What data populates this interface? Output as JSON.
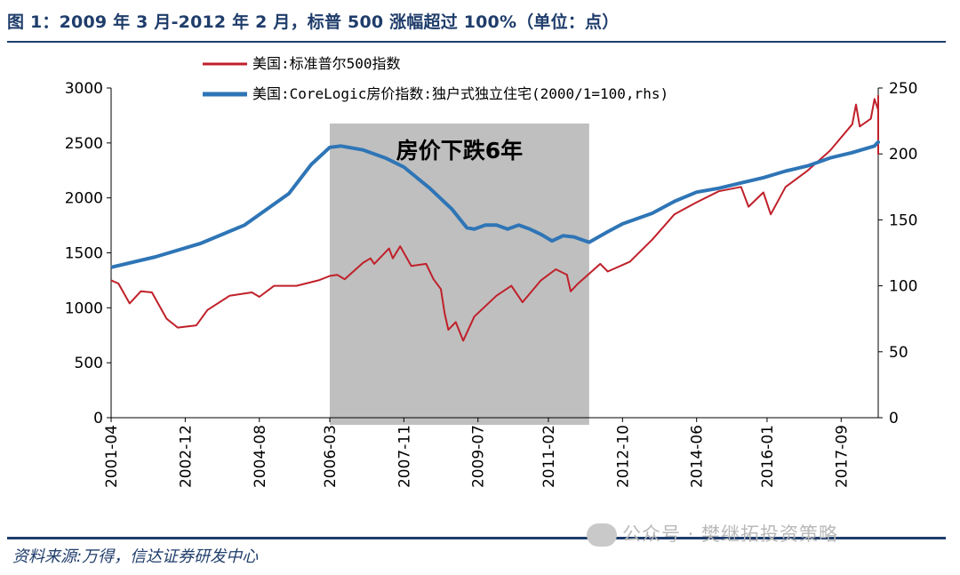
{
  "header": {
    "title": "图 1：2009 年 3 月-2012 年 2 月，标普 500 涨幅超过 100%（单位：点）"
  },
  "footer": {
    "source": "资料来源:万得，信达证券研发中心",
    "watermark": "公众号 · 樊继拓投资策略"
  },
  "colors": {
    "sp500": "#c0202a",
    "corelogic": "#2e75b6",
    "shade": "#bfbfbf",
    "frame": "#1f3d6b"
  },
  "chart_data": {
    "type": "line",
    "annotation": "房价下跌6年",
    "shaded_period": [
      "2006-03",
      "2012-01"
    ],
    "x_ticks": [
      "2001-04",
      "2002-12",
      "2004-08",
      "2006-03",
      "2007-11",
      "2009-07",
      "2011-02",
      "2012-10",
      "2014-06",
      "2016-01",
      "2017-09"
    ],
    "x_range": [
      "2001-04",
      "2018-07"
    ],
    "y_left": {
      "ticks": [
        "0",
        "500",
        "1000",
        "1500",
        "2000",
        "2500",
        "3000"
      ],
      "range": [
        0,
        3000
      ]
    },
    "y_right": {
      "ticks": [
        "0",
        "50",
        "100",
        "150",
        "200",
        "250"
      ],
      "range": [
        0,
        250
      ]
    },
    "legend_position": "top-center",
    "series": [
      {
        "name": "美国:标准普尔500指数",
        "axis": "left",
        "points": [
          [
            "2001-04",
            1250
          ],
          [
            "2001-06",
            1220
          ],
          [
            "2001-09",
            1040
          ],
          [
            "2001-12",
            1150
          ],
          [
            "2002-03",
            1140
          ],
          [
            "2002-07",
            900
          ],
          [
            "2002-10",
            820
          ],
          [
            "2003-03",
            840
          ],
          [
            "2003-06",
            980
          ],
          [
            "2003-12",
            1110
          ],
          [
            "2004-06",
            1140
          ],
          [
            "2004-08",
            1100
          ],
          [
            "2004-12",
            1200
          ],
          [
            "2005-06",
            1200
          ],
          [
            "2005-12",
            1250
          ],
          [
            "2006-03",
            1290
          ],
          [
            "2006-05",
            1300
          ],
          [
            "2006-07",
            1260
          ],
          [
            "2006-12",
            1410
          ],
          [
            "2007-02",
            1450
          ],
          [
            "2007-03",
            1400
          ],
          [
            "2007-07",
            1540
          ],
          [
            "2007-08",
            1450
          ],
          [
            "2007-10",
            1560
          ],
          [
            "2008-01",
            1380
          ],
          [
            "2008-05",
            1400
          ],
          [
            "2008-07",
            1260
          ],
          [
            "2008-09",
            1170
          ],
          [
            "2008-10",
            950
          ],
          [
            "2008-11",
            800
          ],
          [
            "2009-01",
            870
          ],
          [
            "2009-03",
            700
          ],
          [
            "2009-06",
            920
          ],
          [
            "2009-12",
            1110
          ],
          [
            "2010-04",
            1200
          ],
          [
            "2010-07",
            1050
          ],
          [
            "2010-12",
            1250
          ],
          [
            "2011-04",
            1350
          ],
          [
            "2011-07",
            1300
          ],
          [
            "2011-08",
            1150
          ],
          [
            "2011-10",
            1220
          ],
          [
            "2012-01",
            1310
          ],
          [
            "2012-04",
            1400
          ],
          [
            "2012-06",
            1330
          ],
          [
            "2012-12",
            1420
          ],
          [
            "2013-06",
            1620
          ],
          [
            "2013-12",
            1850
          ],
          [
            "2014-06",
            1960
          ],
          [
            "2014-12",
            2060
          ],
          [
            "2015-06",
            2100
          ],
          [
            "2015-08",
            1920
          ],
          [
            "2015-12",
            2050
          ],
          [
            "2016-02",
            1850
          ],
          [
            "2016-06",
            2100
          ],
          [
            "2016-12",
            2250
          ],
          [
            "2017-06",
            2430
          ],
          [
            "2017-12",
            2670
          ],
          [
            "2018-01",
            2850
          ],
          [
            "2018-02",
            2650
          ],
          [
            "2018-05",
            2720
          ],
          [
            "2018-06",
            2900
          ],
          [
            "2018-07",
            2800
          ],
          [
            "2018-09",
            2930
          ],
          [
            "2018-11",
            2740
          ],
          [
            "2018-12",
            2400
          ],
          [
            "2019-01",
            2700
          ]
        ]
      },
      {
        "name": "美国:CoreLogic房价指数:独户式独立住宅(2000/1=100,rhs)",
        "axis": "right",
        "points": [
          [
            "2001-04",
            114
          ],
          [
            "2002-04",
            122
          ],
          [
            "2003-04",
            132
          ],
          [
            "2004-04",
            146
          ],
          [
            "2005-04",
            170
          ],
          [
            "2005-10",
            192
          ],
          [
            "2006-03",
            205
          ],
          [
            "2006-06",
            206
          ],
          [
            "2006-12",
            203
          ],
          [
            "2007-06",
            197
          ],
          [
            "2007-11",
            190
          ],
          [
            "2008-06",
            174
          ],
          [
            "2008-12",
            158
          ],
          [
            "2009-04",
            144
          ],
          [
            "2009-06",
            143
          ],
          [
            "2009-09",
            146
          ],
          [
            "2009-12",
            146
          ],
          [
            "2010-03",
            143
          ],
          [
            "2010-06",
            146
          ],
          [
            "2010-09",
            143
          ],
          [
            "2010-12",
            139
          ],
          [
            "2011-03",
            134
          ],
          [
            "2011-06",
            138
          ],
          [
            "2011-09",
            137
          ],
          [
            "2012-01",
            133
          ],
          [
            "2012-06",
            141
          ],
          [
            "2012-10",
            147
          ],
          [
            "2013-06",
            155
          ],
          [
            "2013-12",
            164
          ],
          [
            "2014-06",
            171
          ],
          [
            "2014-12",
            174
          ],
          [
            "2015-06",
            178
          ],
          [
            "2015-12",
            182
          ],
          [
            "2016-06",
            187
          ],
          [
            "2016-12",
            191
          ],
          [
            "2017-06",
            197
          ],
          [
            "2017-12",
            201
          ],
          [
            "2018-06",
            206
          ],
          [
            "2018-09",
            209
          ],
          [
            "2018-12",
            208
          ]
        ]
      }
    ]
  }
}
